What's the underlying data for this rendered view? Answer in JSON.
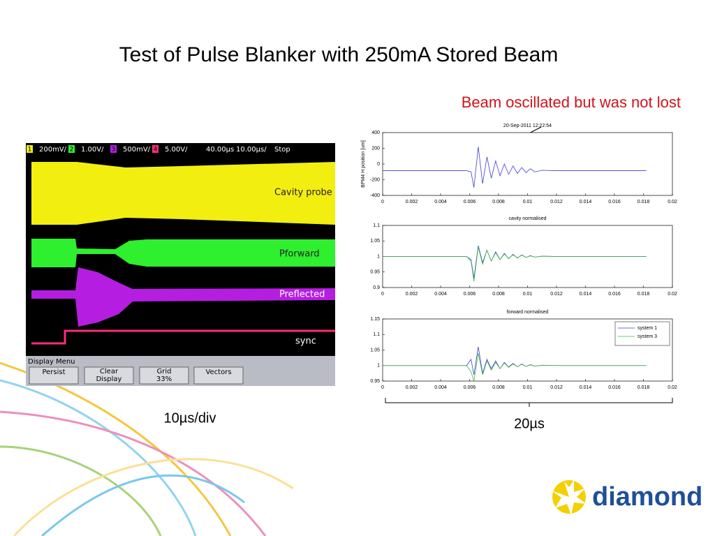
{
  "title": "Test of Pulse Blanker with 250mA Stored Beam",
  "annotation": "Beam oscillated but was not lost",
  "oscilloscope": {
    "status_bar": [
      {
        "channel": "1",
        "scale": "200mV/"
      },
      {
        "channel": "2",
        "scale": "1.00V/"
      },
      {
        "channel": "3",
        "scale": "500mV/"
      },
      {
        "channel": "4",
        "scale": "5.00V/"
      }
    ],
    "delay": "40.00µs",
    "timebase": "10.00µs/",
    "run_state": "Stop",
    "traces": [
      "Cavity probe",
      "Pforward",
      "Preflected",
      "sync"
    ],
    "menu": {
      "title": "Display Menu",
      "buttons": [
        [
          "Persist"
        ],
        [
          "Clear",
          "Display"
        ],
        [
          "Grid",
          "33%"
        ],
        [
          "Vectors"
        ]
      ]
    }
  },
  "scope_scale": "10µs/div",
  "plot_span": "20µs",
  "logo": "diamond",
  "chart_data": [
    {
      "type": "line",
      "title": "20-Sep-2011 12:22:54",
      "y_label": "BPM4 H position [um]",
      "x": [
        0,
        0.004,
        0.0058,
        0.0061,
        0.0063,
        0.0066,
        0.0069,
        0.0072,
        0.0075,
        0.0078,
        0.0081,
        0.0084,
        0.0087,
        0.009,
        0.0093,
        0.0096,
        0.0099,
        0.0102,
        0.0105,
        0.011,
        0.012,
        0.0182
      ],
      "series": [
        {
          "color": "#3b3bd9",
          "values": [
            -85,
            -85,
            -85,
            -100,
            -300,
            220,
            -250,
            90,
            -180,
            40,
            -150,
            0,
            -130,
            -25,
            -120,
            -45,
            -110,
            -60,
            -100,
            -80,
            -85,
            -85
          ]
        }
      ],
      "xlim": [
        0,
        0.02
      ],
      "xticks": [
        0,
        0.002,
        0.004,
        0.006,
        0.008,
        0.01,
        0.012,
        0.014,
        0.016,
        0.018,
        0.02
      ],
      "ylim": [
        -400,
        400
      ],
      "yticks": [
        -400,
        -200,
        0,
        200,
        400
      ]
    },
    {
      "type": "line",
      "title": "cavity normalised",
      "x": [
        0,
        0.004,
        0.0058,
        0.0061,
        0.0063,
        0.0066,
        0.0069,
        0.0072,
        0.0075,
        0.0078,
        0.0081,
        0.0084,
        0.0087,
        0.009,
        0.0093,
        0.0096,
        0.0099,
        0.0102,
        0.0105,
        0.011,
        0.012,
        0.0182
      ],
      "series": [
        {
          "color": "#3b3bd9",
          "values": [
            1,
            1,
            1,
            0.99,
            0.93,
            1.035,
            0.98,
            1.02,
            0.985,
            1.015,
            0.99,
            1.01,
            0.993,
            1.007,
            0.995,
            1.005,
            0.997,
            1.003,
            0.998,
            1.001,
            1,
            1
          ]
        },
        {
          "color": "#3fb83f",
          "values": [
            1,
            1,
            1,
            0.985,
            0.92,
            1.03,
            0.975,
            1.02,
            0.985,
            1.012,
            0.99,
            1.008,
            0.994,
            1.005,
            0.996,
            1.004,
            0.997,
            1.002,
            0.998,
            1.001,
            1,
            1
          ]
        }
      ],
      "xlim": [
        0,
        0.02
      ],
      "xticks": [
        0,
        0.002,
        0.004,
        0.006,
        0.008,
        0.01,
        0.012,
        0.014,
        0.016,
        0.018,
        0.02
      ],
      "ylim": [
        0.9,
        1.1
      ],
      "yticks": [
        0.9,
        0.95,
        1,
        1.05,
        1.1
      ]
    },
    {
      "type": "line",
      "title": "forward normalised",
      "x": [
        0,
        0.004,
        0.0058,
        0.0061,
        0.0063,
        0.0066,
        0.0069,
        0.0072,
        0.0075,
        0.0078,
        0.0081,
        0.0084,
        0.0087,
        0.009,
        0.0093,
        0.0096,
        0.0099,
        0.0102,
        0.0105,
        0.011,
        0.012,
        0.0182
      ],
      "series": [
        {
          "name": "system 1",
          "color": "#3b3bd9",
          "values": [
            1,
            1,
            1,
            1.02,
            0.97,
            1.06,
            0.975,
            1.02,
            0.99,
            1.015,
            0.99,
            1.01,
            0.995,
            1.007,
            0.996,
            1.005,
            0.997,
            1.003,
            0.998,
            1.001,
            1,
            1
          ]
        },
        {
          "name": "system 3",
          "color": "#3fb83f",
          "values": [
            1,
            1,
            1,
            0.98,
            0.95,
            1.04,
            0.97,
            1.015,
            0.985,
            1.01,
            0.99,
            1.008,
            0.994,
            1.005,
            0.996,
            1.004,
            0.997,
            1.002,
            0.998,
            1.001,
            1,
            1
          ]
        }
      ],
      "xlim": [
        0,
        0.02
      ],
      "xticks": [
        0,
        0.002,
        0.004,
        0.006,
        0.008,
        0.01,
        0.012,
        0.014,
        0.016,
        0.018,
        0.02
      ],
      "ylim": [
        0.95,
        1.15
      ],
      "yticks": [
        0.95,
        1,
        1.05,
        1.1,
        1.15
      ],
      "legend": "upper right"
    }
  ]
}
